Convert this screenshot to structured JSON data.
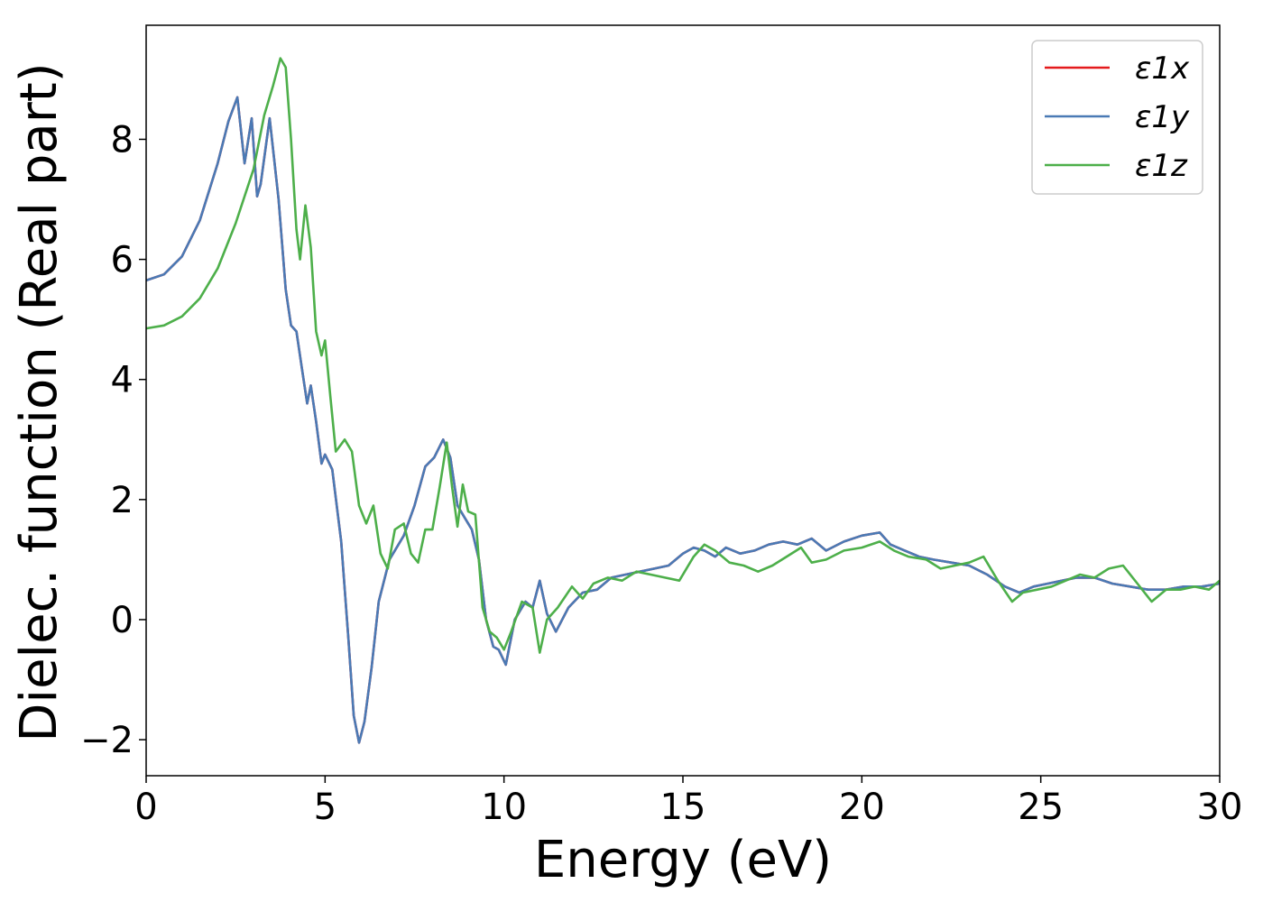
{
  "chart_data": {
    "type": "line",
    "xlabel": "Energy (eV)",
    "ylabel": "Dielec. function (Real part)",
    "xlim": [
      0,
      30
    ],
    "ylim": [
      -2.6,
      9.9
    ],
    "xticks": [
      0,
      5,
      10,
      15,
      20,
      25,
      30
    ],
    "xtick_labels": [
      "0",
      "5",
      "10",
      "15",
      "20",
      "25",
      "30"
    ],
    "yticks": [
      -2,
      0,
      2,
      4,
      6,
      8
    ],
    "ytick_labels": [
      "−2",
      "0",
      "2",
      "4",
      "6",
      "8"
    ],
    "grid": false,
    "legend_position": "top-right",
    "series": [
      {
        "name": "ε1x",
        "color": "#e41a1c",
        "x": [
          0,
          0.5,
          1.0,
          1.5,
          2.0,
          2.3,
          2.55,
          2.75,
          2.95,
          3.1,
          3.2,
          3.45,
          3.7,
          3.9,
          4.05,
          4.2,
          4.35,
          4.5,
          4.6,
          4.75,
          4.9,
          5.0,
          5.2,
          5.45,
          5.65,
          5.8,
          5.95,
          6.1,
          6.3,
          6.5,
          6.8,
          7.2,
          7.5,
          7.8,
          8.05,
          8.3,
          8.5,
          8.7,
          8.9,
          9.1,
          9.3,
          9.5,
          9.7,
          9.85,
          10.05,
          10.3,
          10.6,
          10.8,
          11.0,
          11.2,
          11.45,
          11.8,
          12.2,
          12.6,
          13.0,
          13.4,
          13.8,
          14.2,
          14.6,
          15.0,
          15.3,
          15.6,
          15.9,
          16.2,
          16.6,
          17.0,
          17.4,
          17.8,
          18.2,
          18.6,
          19.0,
          19.5,
          20.0,
          20.5,
          20.8,
          21.2,
          21.6,
          22.0,
          22.5,
          23.0,
          23.5,
          24.0,
          24.4,
          24.8,
          25.2,
          25.6,
          26.0,
          26.5,
          27.0,
          27.5,
          28.0,
          28.5,
          29.0,
          29.5,
          30.0
        ],
        "y": [
          5.65,
          5.75,
          6.05,
          6.65,
          7.6,
          8.3,
          8.7,
          7.6,
          8.35,
          7.05,
          7.25,
          8.35,
          7.0,
          5.5,
          4.9,
          4.8,
          4.2,
          3.6,
          3.9,
          3.3,
          2.6,
          2.75,
          2.5,
          1.3,
          -0.3,
          -1.6,
          -2.05,
          -1.7,
          -0.8,
          0.3,
          1.0,
          1.4,
          1.9,
          2.55,
          2.7,
          3.0,
          2.7,
          1.9,
          1.7,
          1.5,
          1.0,
          0.0,
          -0.45,
          -0.5,
          -0.75,
          0.0,
          0.3,
          0.2,
          0.65,
          0.1,
          -0.2,
          0.2,
          0.45,
          0.5,
          0.7,
          0.75,
          0.8,
          0.85,
          0.9,
          1.1,
          1.2,
          1.15,
          1.05,
          1.2,
          1.1,
          1.15,
          1.25,
          1.3,
          1.25,
          1.35,
          1.15,
          1.3,
          1.4,
          1.45,
          1.25,
          1.15,
          1.05,
          1.0,
          0.95,
          0.9,
          0.75,
          0.55,
          0.45,
          0.55,
          0.6,
          0.65,
          0.7,
          0.7,
          0.6,
          0.55,
          0.5,
          0.5,
          0.55,
          0.55,
          0.6
        ]
      },
      {
        "name": "ε1y",
        "color": "#4a7ab5",
        "x": [
          0,
          0.5,
          1.0,
          1.5,
          2.0,
          2.3,
          2.55,
          2.75,
          2.95,
          3.1,
          3.2,
          3.45,
          3.7,
          3.9,
          4.05,
          4.2,
          4.35,
          4.5,
          4.6,
          4.75,
          4.9,
          5.0,
          5.2,
          5.45,
          5.65,
          5.8,
          5.95,
          6.1,
          6.3,
          6.5,
          6.8,
          7.2,
          7.5,
          7.8,
          8.05,
          8.3,
          8.5,
          8.7,
          8.9,
          9.1,
          9.3,
          9.5,
          9.7,
          9.85,
          10.05,
          10.3,
          10.6,
          10.8,
          11.0,
          11.2,
          11.45,
          11.8,
          12.2,
          12.6,
          13.0,
          13.4,
          13.8,
          14.2,
          14.6,
          15.0,
          15.3,
          15.6,
          15.9,
          16.2,
          16.6,
          17.0,
          17.4,
          17.8,
          18.2,
          18.6,
          19.0,
          19.5,
          20.0,
          20.5,
          20.8,
          21.2,
          21.6,
          22.0,
          22.5,
          23.0,
          23.5,
          24.0,
          24.4,
          24.8,
          25.2,
          25.6,
          26.0,
          26.5,
          27.0,
          27.5,
          28.0,
          28.5,
          29.0,
          29.5,
          30.0
        ],
        "y": [
          5.65,
          5.75,
          6.05,
          6.65,
          7.6,
          8.3,
          8.7,
          7.6,
          8.35,
          7.05,
          7.25,
          8.35,
          7.0,
          5.5,
          4.9,
          4.8,
          4.2,
          3.6,
          3.9,
          3.3,
          2.6,
          2.75,
          2.5,
          1.3,
          -0.3,
          -1.6,
          -2.05,
          -1.7,
          -0.8,
          0.3,
          1.0,
          1.4,
          1.9,
          2.55,
          2.7,
          3.0,
          2.7,
          1.9,
          1.7,
          1.5,
          1.0,
          0.0,
          -0.45,
          -0.5,
          -0.75,
          0.0,
          0.3,
          0.2,
          0.65,
          0.1,
          -0.2,
          0.2,
          0.45,
          0.5,
          0.7,
          0.75,
          0.8,
          0.85,
          0.9,
          1.1,
          1.2,
          1.15,
          1.05,
          1.2,
          1.1,
          1.15,
          1.25,
          1.3,
          1.25,
          1.35,
          1.15,
          1.3,
          1.4,
          1.45,
          1.25,
          1.15,
          1.05,
          1.0,
          0.95,
          0.9,
          0.75,
          0.55,
          0.45,
          0.55,
          0.6,
          0.65,
          0.7,
          0.7,
          0.6,
          0.55,
          0.5,
          0.5,
          0.55,
          0.55,
          0.6
        ]
      },
      {
        "name": "ε1z",
        "color": "#4daf4a",
        "x": [
          0,
          0.5,
          1.0,
          1.5,
          2.0,
          2.5,
          3.0,
          3.3,
          3.55,
          3.75,
          3.9,
          4.05,
          4.2,
          4.3,
          4.45,
          4.6,
          4.75,
          4.9,
          5.0,
          5.15,
          5.3,
          5.55,
          5.75,
          5.95,
          6.15,
          6.35,
          6.55,
          6.75,
          6.95,
          7.2,
          7.4,
          7.6,
          7.8,
          8.0,
          8.2,
          8.4,
          8.55,
          8.7,
          8.85,
          9.0,
          9.2,
          9.4,
          9.6,
          9.8,
          10.0,
          10.2,
          10.5,
          10.8,
          11.0,
          11.2,
          11.5,
          11.9,
          12.2,
          12.5,
          12.9,
          13.3,
          13.7,
          14.1,
          14.5,
          14.9,
          15.3,
          15.6,
          15.9,
          16.3,
          16.7,
          17.1,
          17.5,
          17.9,
          18.3,
          18.6,
          19.0,
          19.5,
          20.0,
          20.5,
          20.9,
          21.3,
          21.8,
          22.2,
          22.6,
          23.0,
          23.4,
          23.8,
          24.2,
          24.5,
          24.9,
          25.3,
          25.7,
          26.1,
          26.5,
          26.9,
          27.3,
          27.7,
          28.1,
          28.5,
          28.9,
          29.3,
          29.7,
          30.0
        ],
        "y": [
          4.85,
          4.9,
          5.05,
          5.35,
          5.85,
          6.6,
          7.5,
          8.4,
          8.9,
          9.35,
          9.2,
          8.0,
          6.5,
          6.0,
          6.9,
          6.2,
          4.8,
          4.4,
          4.65,
          3.7,
          2.8,
          3.0,
          2.8,
          1.9,
          1.6,
          1.9,
          1.1,
          0.85,
          1.5,
          1.6,
          1.1,
          0.95,
          1.5,
          1.5,
          2.2,
          2.95,
          2.2,
          1.55,
          2.25,
          1.8,
          1.75,
          0.2,
          -0.2,
          -0.3,
          -0.5,
          -0.2,
          0.3,
          0.2,
          -0.55,
          0.0,
          0.2,
          0.55,
          0.35,
          0.6,
          0.7,
          0.65,
          0.8,
          0.75,
          0.7,
          0.65,
          1.05,
          1.25,
          1.15,
          0.95,
          0.9,
          0.8,
          0.9,
          1.05,
          1.2,
          0.95,
          1.0,
          1.15,
          1.2,
          1.3,
          1.15,
          1.05,
          1.0,
          0.85,
          0.9,
          0.95,
          1.05,
          0.65,
          0.3,
          0.45,
          0.5,
          0.55,
          0.65,
          0.75,
          0.7,
          0.85,
          0.9,
          0.6,
          0.3,
          0.5,
          0.5,
          0.55,
          0.5,
          0.65
        ]
      }
    ]
  }
}
